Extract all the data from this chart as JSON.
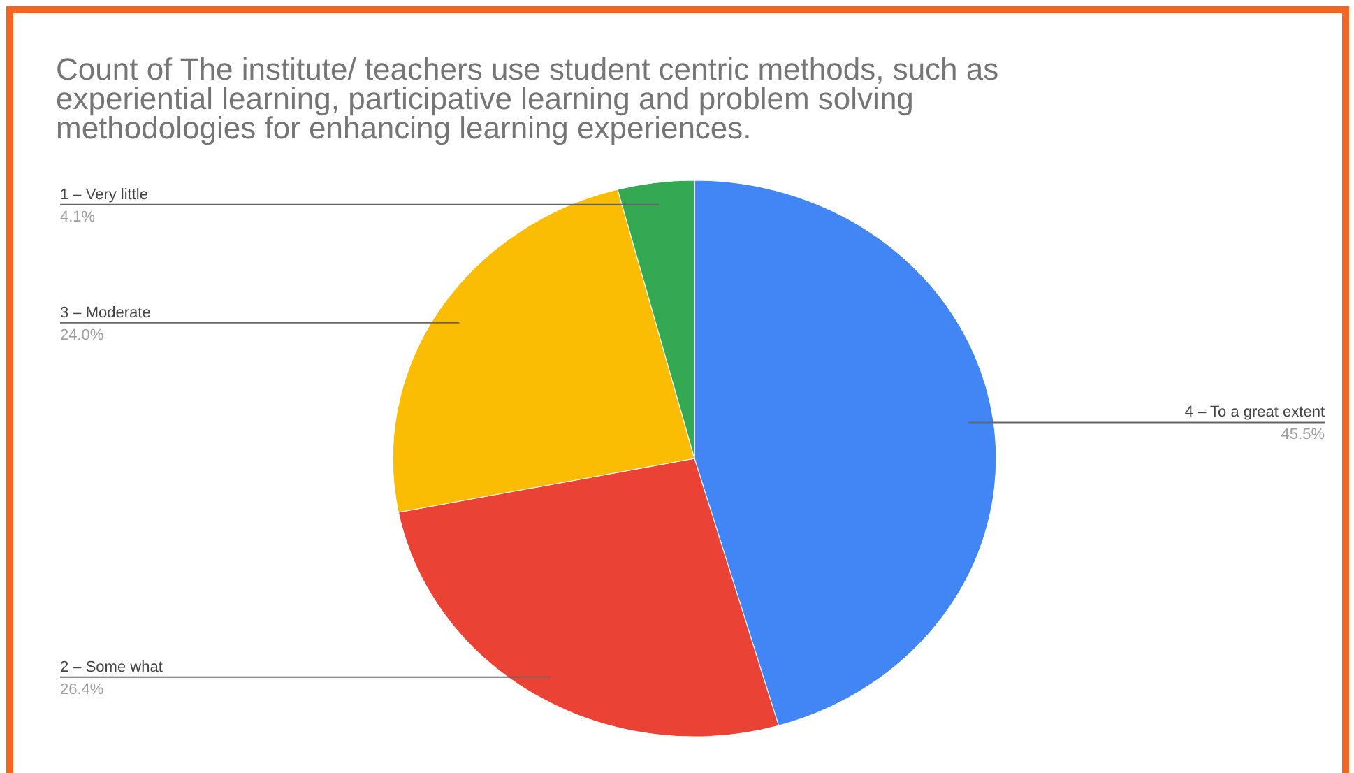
{
  "chart_data": {
    "type": "pie",
    "title": "Count of The institute/ teachers use student centric methods, such as experiential learning, participative learning and problem solving methodologies for enhancing learning experiences.",
    "categories": [
      "4 – To a great extent",
      "2 – Some what",
      "3 – Moderate",
      "1 – Very little"
    ],
    "values": [
      45.5,
      26.4,
      24.0,
      4.1
    ],
    "colors": [
      "#4285f4",
      "#ea4335",
      "#fbbc04",
      "#34a853"
    ],
    "value_labels": [
      "45.5%",
      "26.4%",
      "24.0%",
      "4.1%"
    ]
  }
}
